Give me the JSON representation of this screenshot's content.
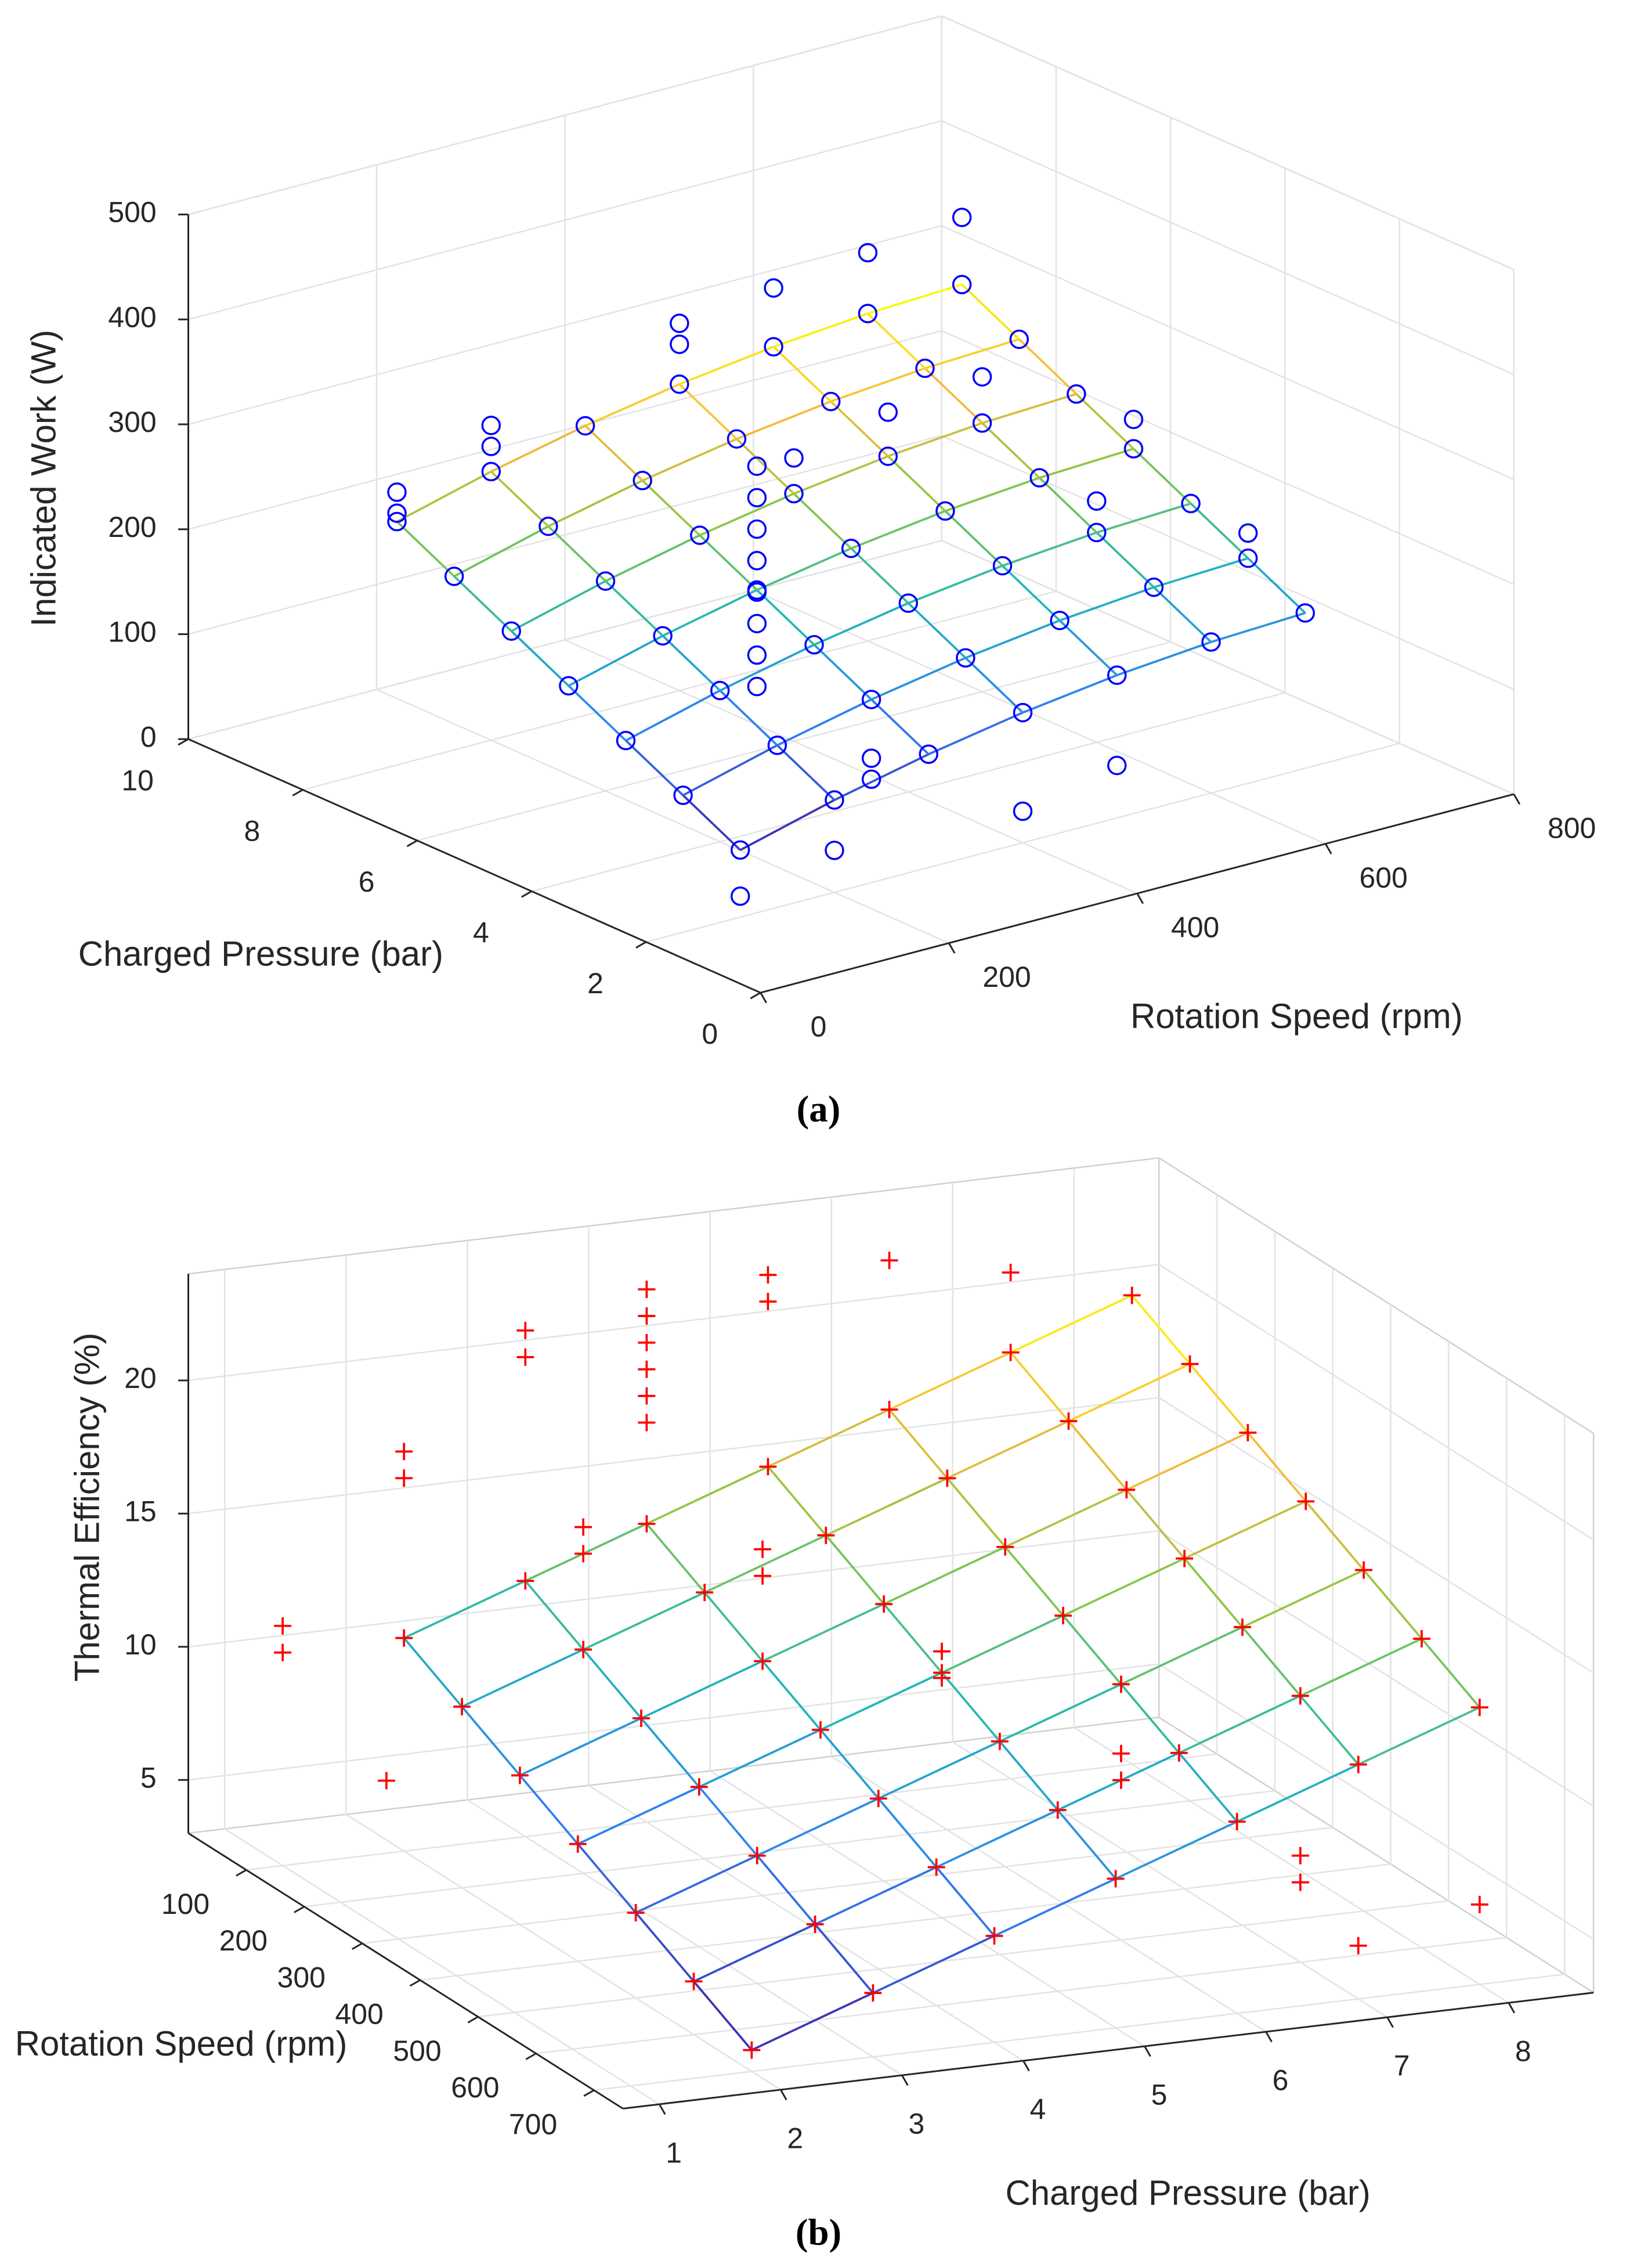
{
  "chart_data": [
    {
      "type": "scatter3d",
      "caption": "(a)",
      "xlabel": "Rotation Speed (rpm)",
      "ylabel": "Charged Pressure (bar)",
      "zlabel": "Indicated Work (W)",
      "xlim": [
        0,
        800
      ],
      "ylim": [
        0,
        10
      ],
      "zlim": [
        0,
        500
      ],
      "xticks": [
        0,
        200,
        400,
        600,
        800
      ],
      "yticks": [
        0,
        2,
        4,
        6,
        8,
        10
      ],
      "zticks": [
        0,
        100,
        200,
        300,
        400,
        500
      ],
      "grid": true,
      "marker": "o",
      "color": "#0000ff",
      "surface": {
        "x": [
          100,
          200,
          300,
          400,
          500,
          600,
          700
        ],
        "y": [
          2,
          3,
          4,
          5,
          6,
          7,
          8
        ],
        "z": [
          [
            64,
            88,
            108,
            124,
            136,
            144,
            148
          ],
          [
            92,
            116,
            136,
            152,
            164,
            172,
            176
          ],
          [
            120,
            144,
            164,
            180,
            192,
            200,
            204
          ],
          [
            148,
            172,
            192,
            208,
            220,
            228,
            232
          ],
          [
            176,
            200,
            220,
            236,
            248,
            256,
            260
          ],
          [
            204,
            228,
            248,
            264,
            276,
            284,
            288
          ],
          [
            232,
            256,
            276,
            292,
            304,
            312,
            316
          ]
        ]
      },
      "x": [
        300,
        300,
        300,
        300,
        300,
        300,
        300,
        300,
        200,
        200,
        100,
        100,
        400,
        400,
        500,
        600,
        700,
        400,
        500,
        600,
        300,
        300,
        200,
        100,
        400,
        500,
        600,
        700,
        700
      ],
      "y": [
        5,
        5,
        5,
        5,
        5,
        5,
        5,
        5,
        8,
        8,
        8,
        8,
        8,
        8,
        8,
        8,
        8,
        6,
        6,
        6,
        3,
        3,
        2,
        2,
        2,
        2,
        4,
        5,
        3
      ],
      "z": [
        100,
        130,
        160,
        190,
        220,
        250,
        280,
        310,
        280,
        300,
        260,
        240,
        330,
        350,
        360,
        370,
        380,
        270,
        290,
        300,
        60,
        80,
        40,
        20,
        30,
        50,
        230,
        260,
        200
      ]
    },
    {
      "type": "scatter3d",
      "caption": "(b)",
      "xlabel": "Charged Pressure (bar)",
      "ylabel": "Rotation Speed (rpm)",
      "zlabel": "Thermal Efficiency (%)",
      "xlim": [
        0.7,
        8.7
      ],
      "ylim": [
        0,
        750
      ],
      "zlim": [
        3,
        24
      ],
      "xticks": [
        1,
        2,
        3,
        4,
        5,
        6,
        7,
        8
      ],
      "yticks": [
        100,
        200,
        300,
        400,
        500,
        600,
        700
      ],
      "zticks": [
        5,
        10,
        15,
        20
      ],
      "grid": true,
      "marker": "+",
      "color": "#ff0000",
      "surface": {
        "x": [
          2,
          3,
          4,
          5,
          6,
          7,
          8
        ],
        "y": [
          100,
          200,
          300,
          400,
          500,
          600,
          700
        ],
        "z": [
          [
            11,
            12.6,
            14.2,
            15.8,
            17.4,
            19,
            20.6
          ],
          [
            9.8,
            11.4,
            13,
            14.6,
            16.2,
            17.8,
            19.4
          ],
          [
            8.6,
            10.2,
            11.8,
            13.4,
            15,
            16.6,
            18.2
          ],
          [
            7.4,
            9,
            10.6,
            12.2,
            13.8,
            15.4,
            17
          ],
          [
            6.2,
            7.8,
            9.4,
            11,
            12.6,
            14.2,
            15.8
          ],
          [
            5,
            6.6,
            8.2,
            9.8,
            11.4,
            13,
            14.6
          ],
          [
            3.8,
            5.4,
            7,
            8.6,
            10.2,
            11.8,
            13.4
          ]
        ]
      },
      "x": [
        4,
        4,
        4,
        4,
        4,
        4,
        3,
        3,
        5,
        5,
        6,
        7,
        2,
        2,
        1,
        1,
        0.9,
        4,
        4,
        5,
        5,
        6,
        6,
        7,
        7,
        7,
        8,
        3,
        3
      ],
      "y": [
        100,
        100,
        100,
        100,
        100,
        100,
        100,
        100,
        100,
        100,
        100,
        100,
        100,
        100,
        100,
        100,
        300,
        300,
        300,
        400,
        400,
        500,
        500,
        600,
        600,
        700,
        700,
        200,
        200
      ],
      "z": [
        18,
        19,
        20,
        21,
        22,
        23,
        21,
        22,
        22,
        23,
        23,
        22,
        18,
        17,
        11,
        12,
        9,
        16,
        15,
        13,
        12,
        10,
        9,
        7,
        6,
        5,
        6,
        15,
        16
      ]
    }
  ]
}
